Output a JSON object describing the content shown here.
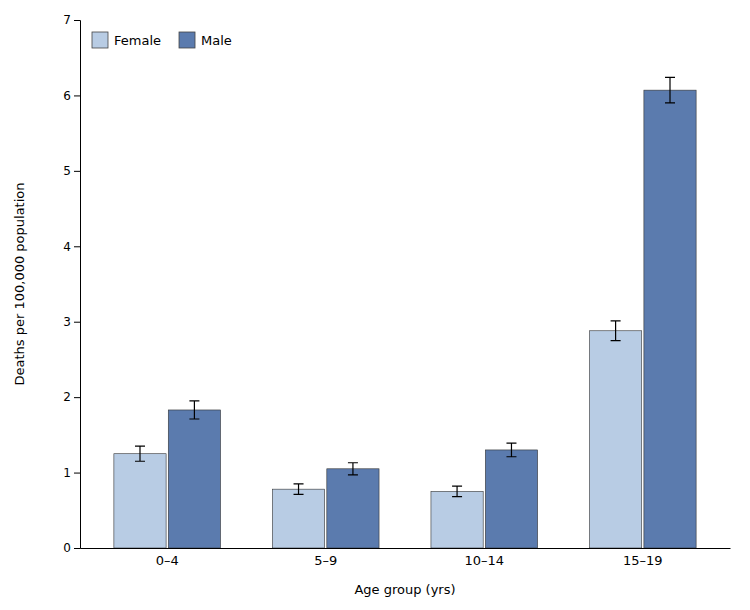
{
  "chart_data": {
    "type": "bar",
    "xlabel": "Age group (yrs)",
    "ylabel": "Deaths per 100,000 population",
    "categories": [
      "0–4",
      "5–9",
      "10–14",
      "15–19"
    ],
    "series": [
      {
        "name": "Female",
        "color": "#b8cce4",
        "values": [
          1.25,
          0.78,
          0.75,
          2.88
        ],
        "errors": [
          0.1,
          0.07,
          0.07,
          0.13
        ]
      },
      {
        "name": "Male",
        "color": "#5b7bae",
        "values": [
          1.83,
          1.05,
          1.3,
          6.07
        ],
        "errors": [
          0.12,
          0.08,
          0.09,
          0.17
        ]
      }
    ],
    "ylim": [
      0,
      7
    ],
    "yticks": [
      0,
      1,
      2,
      3,
      4,
      5,
      6,
      7
    ],
    "grid": false,
    "legend": "upper-left"
  }
}
